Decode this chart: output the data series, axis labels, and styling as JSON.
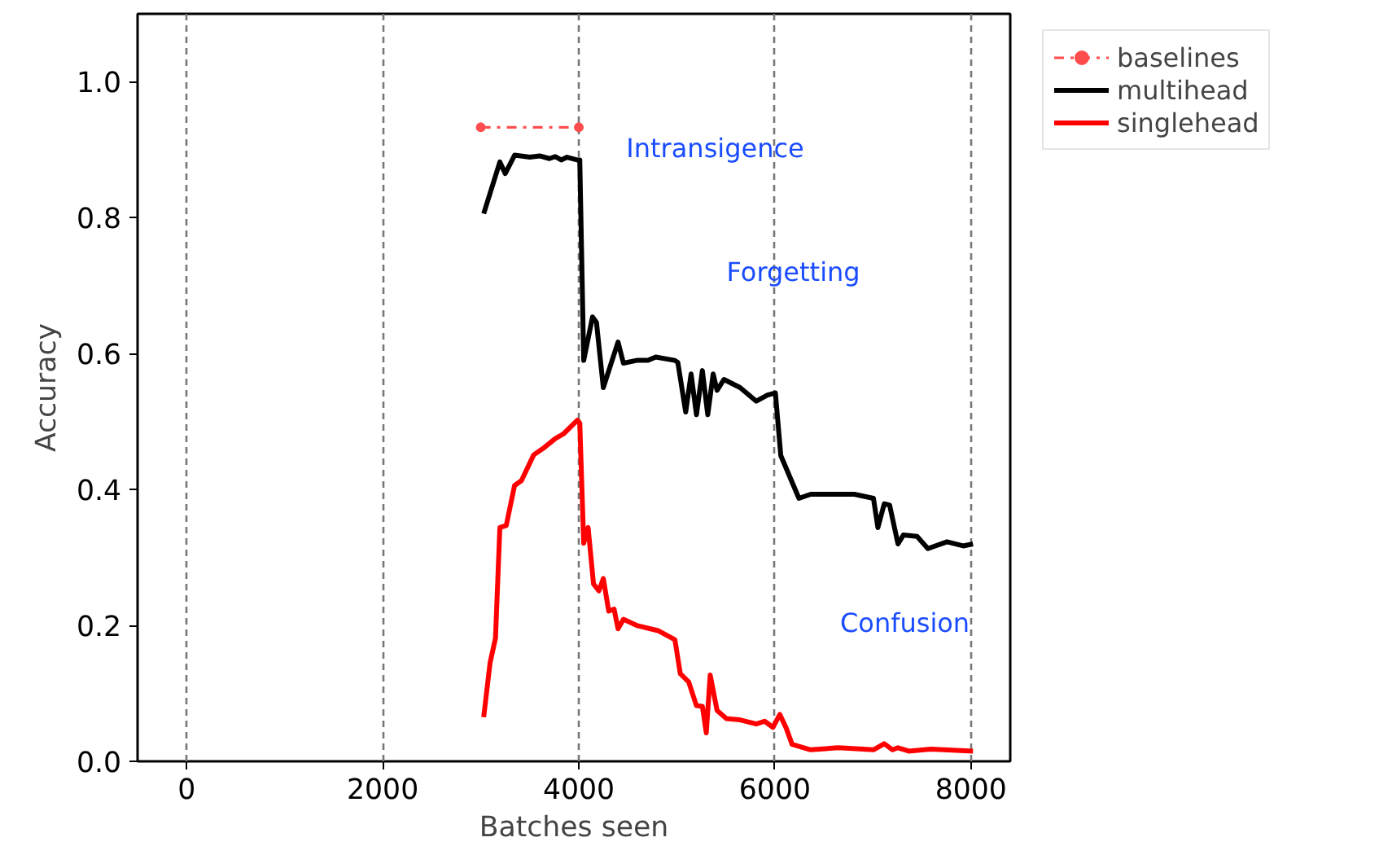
{
  "chart_data": {
    "type": "line",
    "xlabel": "Batches seen",
    "ylabel": "Accuracy",
    "xlim": [
      -500,
      8400
    ],
    "ylim": [
      0,
      1.1
    ],
    "xticks": [
      0,
      2000,
      4000,
      6000,
      8000
    ],
    "yticks": [
      {
        "value": 0,
        "label": "0.0"
      },
      0.2,
      0.4,
      0.6,
      0.8,
      {
        "value": 1,
        "label": "1.0"
      }
    ],
    "grid": "x",
    "legend": "top right",
    "series": [
      {
        "name": "baselines",
        "color": "#ff4d4d",
        "line_style": "dashdot",
        "marker": "circle",
        "x": [
          3000,
          4000
        ],
        "values": [
          0.933,
          0.933
        ]
      },
      {
        "name": "multihead",
        "color": "#000000",
        "marker": "none",
        "x": [
          3030,
          3195,
          3250,
          3345,
          3500,
          3600,
          3700,
          3760,
          3820,
          3880,
          3982,
          4010,
          4050,
          4140,
          4180,
          4250,
          4400,
          4455,
          4590,
          4705,
          4785,
          4980,
          5010,
          5090,
          5145,
          5200,
          5260,
          5315,
          5370,
          5410,
          5480,
          5645,
          5810,
          5925,
          6005,
          6060,
          6245,
          6365,
          6810,
          7005,
          7050,
          7115,
          7170,
          7255,
          7310,
          7450,
          7560,
          7755,
          7920,
          8020
        ],
        "values": [
          0.806,
          0.882,
          0.865,
          0.892,
          0.889,
          0.891,
          0.887,
          0.89,
          0.885,
          0.889,
          0.885,
          0.885,
          0.59,
          0.654,
          0.646,
          0.55,
          0.617,
          0.586,
          0.59,
          0.59,
          0.595,
          0.59,
          0.587,
          0.514,
          0.57,
          0.51,
          0.575,
          0.51,
          0.57,
          0.546,
          0.562,
          0.55,
          0.53,
          0.539,
          0.542,
          0.45,
          0.387,
          0.393,
          0.393,
          0.387,
          0.344,
          0.379,
          0.377,
          0.32,
          0.333,
          0.331,
          0.313,
          0.323,
          0.317,
          0.32
        ]
      },
      {
        "name": "singlehead",
        "color": "#ff0000",
        "marker": "none",
        "x": [
          3030,
          3095,
          3150,
          3195,
          3260,
          3345,
          3415,
          3540,
          3650,
          3760,
          3845,
          3985,
          4010,
          4050,
          4095,
          4150,
          4205,
          4250,
          4305,
          4360,
          4400,
          4455,
          4590,
          4815,
          4980,
          5035,
          5120,
          5200,
          5260,
          5300,
          5340,
          5410,
          5505,
          5645,
          5810,
          5895,
          5980,
          6050,
          6115,
          6175,
          6365,
          6645,
          7005,
          7115,
          7200,
          7255,
          7365,
          7590,
          8020
        ],
        "values": [
          0.065,
          0.145,
          0.181,
          0.344,
          0.347,
          0.406,
          0.413,
          0.451,
          0.462,
          0.475,
          0.482,
          0.502,
          0.498,
          0.321,
          0.344,
          0.261,
          0.251,
          0.269,
          0.221,
          0.224,
          0.195,
          0.209,
          0.2,
          0.192,
          0.179,
          0.129,
          0.117,
          0.082,
          0.081,
          0.042,
          0.127,
          0.075,
          0.063,
          0.061,
          0.055,
          0.059,
          0.05,
          0.069,
          0.049,
          0.025,
          0.017,
          0.02,
          0.017,
          0.026,
          0.017,
          0.02,
          0.015,
          0.018,
          0.015
        ]
      }
    ],
    "annotations": [
      "Intransigence",
      "Forgetting",
      "Confusion"
    ]
  }
}
